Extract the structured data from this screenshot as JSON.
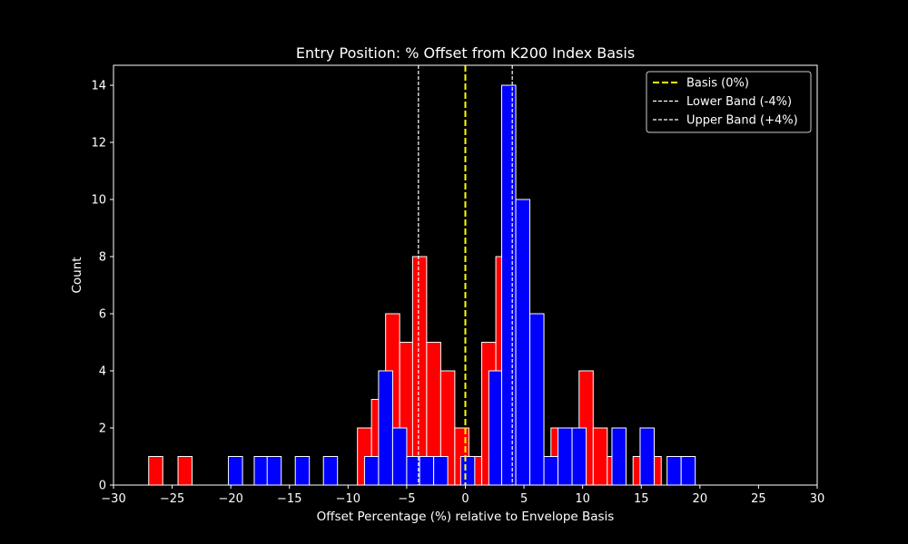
{
  "chart_data": {
    "type": "bar",
    "title": "Entry Position: % Offset from K200 Index Basis",
    "xlabel": "Offset Percentage (%) relative to Envelope Basis",
    "ylabel": "Count",
    "xlim": [
      -30,
      30
    ],
    "ylim": [
      0,
      14.7
    ],
    "xticks": [
      -30,
      -25,
      -20,
      -15,
      -10,
      -5,
      0,
      5,
      10,
      15,
      20,
      25,
      30
    ],
    "xtick_labels": [
      "−30",
      "−25",
      "−20",
      "−15",
      "−10",
      "−5",
      "0",
      "5",
      "10",
      "15",
      "20",
      "25",
      "30"
    ],
    "yticks": [
      0,
      2,
      4,
      6,
      8,
      10,
      12,
      14
    ],
    "ytick_labels": [
      "0",
      "2",
      "4",
      "6",
      "8",
      "10",
      "12",
      "14"
    ],
    "bin_width": 1.2,
    "background": "#000000",
    "grid": false,
    "legend_position": "top-right",
    "series": [
      {
        "color": "#ff0000",
        "bins": [
          {
            "x": -26.4,
            "count": 1
          },
          {
            "x": -23.9,
            "count": 1
          },
          {
            "x": -8.6,
            "count": 2
          },
          {
            "x": -7.4,
            "count": 3
          },
          {
            "x": -6.2,
            "count": 6
          },
          {
            "x": -5.0,
            "count": 5
          },
          {
            "x": -3.9,
            "count": 8
          },
          {
            "x": -2.7,
            "count": 5
          },
          {
            "x": -1.5,
            "count": 4
          },
          {
            "x": -0.3,
            "count": 2
          },
          {
            "x": 0.8,
            "count": 1
          },
          {
            "x": 2.0,
            "count": 5
          },
          {
            "x": 3.2,
            "count": 8
          },
          {
            "x": 4.4,
            "count": 4
          },
          {
            "x": 5.6,
            "count": 1
          },
          {
            "x": 7.9,
            "count": 2
          },
          {
            "x": 9.1,
            "count": 1
          },
          {
            "x": 10.3,
            "count": 4
          },
          {
            "x": 11.5,
            "count": 2
          },
          {
            "x": 12.7,
            "count": 1
          },
          {
            "x": 14.9,
            "count": 1
          },
          {
            "x": 16.1,
            "count": 1
          }
        ]
      },
      {
        "color": "#0000ff",
        "bins": [
          {
            "x": -19.6,
            "count": 1
          },
          {
            "x": -17.4,
            "count": 1
          },
          {
            "x": -16.3,
            "count": 1
          },
          {
            "x": -13.9,
            "count": 1
          },
          {
            "x": -11.5,
            "count": 1
          },
          {
            "x": -8.0,
            "count": 1
          },
          {
            "x": -6.8,
            "count": 4
          },
          {
            "x": -5.6,
            "count": 2
          },
          {
            "x": -4.4,
            "count": 1
          },
          {
            "x": -3.3,
            "count": 1
          },
          {
            "x": -2.1,
            "count": 1
          },
          {
            "x": 0.2,
            "count": 1
          },
          {
            "x": 2.6,
            "count": 4
          },
          {
            "x": 3.7,
            "count": 14
          },
          {
            "x": 4.9,
            "count": 10
          },
          {
            "x": 6.1,
            "count": 6
          },
          {
            "x": 7.3,
            "count": 1
          },
          {
            "x": 8.5,
            "count": 2
          },
          {
            "x": 9.7,
            "count": 2
          },
          {
            "x": 13.1,
            "count": 2
          },
          {
            "x": 15.5,
            "count": 2
          },
          {
            "x": 17.8,
            "count": 1
          },
          {
            "x": 19.0,
            "count": 1
          }
        ]
      }
    ],
    "reference_lines": [
      {
        "x": 0,
        "color": "#ffff00",
        "style": "dashed",
        "label": "Basis (0%)"
      },
      {
        "x": -4,
        "color": "#ffffff",
        "style": "dashed",
        "label": "Lower Band (-4%)"
      },
      {
        "x": 4,
        "color": "#ffffff",
        "style": "dashed",
        "label": "Upper Band (+4%)"
      }
    ]
  }
}
